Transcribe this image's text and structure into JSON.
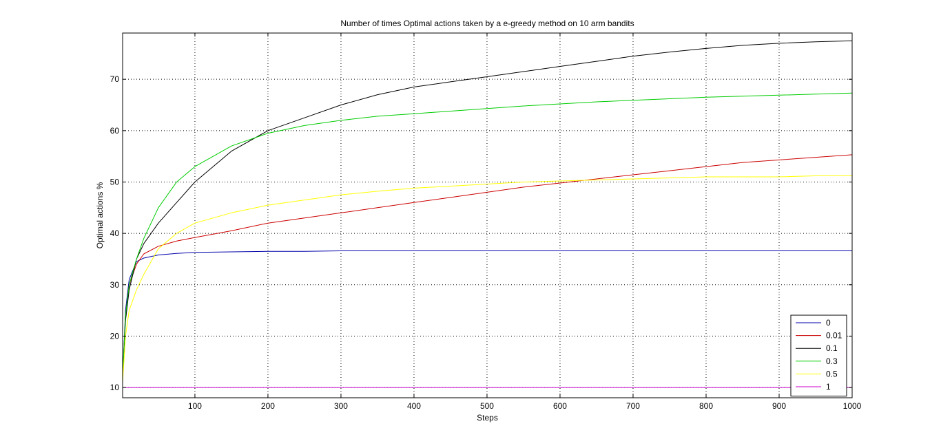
{
  "chart_data": {
    "type": "line",
    "title": "Number of times Optimal actions taken by a e-greedy method on 10 arm bandits",
    "xlabel": "Steps",
    "ylabel": "Optimal actions %",
    "xlim": [
      1,
      1000
    ],
    "ylim": [
      8,
      79
    ],
    "x_ticks": [
      100,
      200,
      300,
      400,
      500,
      600,
      700,
      800,
      900,
      1000
    ],
    "y_ticks": [
      10,
      20,
      30,
      40,
      50,
      60,
      70
    ],
    "grid": true,
    "legend_position": "bottom-right",
    "x": [
      1,
      5,
      10,
      20,
      30,
      50,
      75,
      100,
      150,
      200,
      250,
      300,
      350,
      400,
      450,
      500,
      550,
      600,
      650,
      700,
      750,
      800,
      850,
      900,
      950,
      1000
    ],
    "series": [
      {
        "name": "0",
        "color": "#0000aa",
        "values": [
          12,
          25,
          31,
          34.5,
          35.2,
          35.8,
          36.1,
          36.3,
          36.4,
          36.5,
          36.5,
          36.6,
          36.6,
          36.6,
          36.6,
          36.6,
          36.6,
          36.6,
          36.6,
          36.6,
          36.6,
          36.6,
          36.6,
          36.6,
          36.6,
          36.6
        ]
      },
      {
        "name": "0.01",
        "color": "#cc0000",
        "values": [
          12,
          24,
          30,
          34,
          36,
          37.5,
          38.5,
          39.2,
          40.5,
          42,
          43,
          44,
          45,
          46,
          47,
          48,
          49,
          49.8,
          50.6,
          51.4,
          52.2,
          53,
          53.8,
          54.3,
          54.8,
          55.3
        ]
      },
      {
        "name": "0.1",
        "color": "#000000",
        "values": [
          12,
          23,
          29,
          35,
          38,
          42,
          46,
          50,
          56,
          60,
          62.5,
          65,
          67,
          68.5,
          69.5,
          70.5,
          71.5,
          72.5,
          73.5,
          74.5,
          75.3,
          76,
          76.6,
          77,
          77.3,
          77.5
        ]
      },
      {
        "name": "0.3",
        "color": "#00cc00",
        "values": [
          12,
          24,
          30,
          35,
          39,
          45,
          50,
          53,
          57,
          59.5,
          61,
          62,
          62.8,
          63.3,
          63.8,
          64.3,
          64.8,
          65.2,
          65.6,
          65.9,
          66.2,
          66.5,
          66.7,
          66.9,
          67.1,
          67.3
        ]
      },
      {
        "name": "0.5",
        "color": "#ffff00",
        "values": [
          11,
          20,
          25,
          29,
          32,
          37,
          40,
          42,
          44,
          45.5,
          46.5,
          47.5,
          48.2,
          48.8,
          49.2,
          49.6,
          50,
          50.2,
          50.4,
          50.6,
          50.8,
          51,
          51,
          51,
          51.2,
          51.2
        ]
      },
      {
        "name": "1",
        "color": "#cc00cc",
        "values": [
          10,
          10,
          10,
          10,
          10,
          10,
          10,
          10,
          10,
          10,
          10,
          10,
          10,
          10,
          10,
          10,
          10,
          10,
          10,
          10,
          10,
          10,
          10,
          10,
          10,
          10
        ]
      }
    ]
  }
}
